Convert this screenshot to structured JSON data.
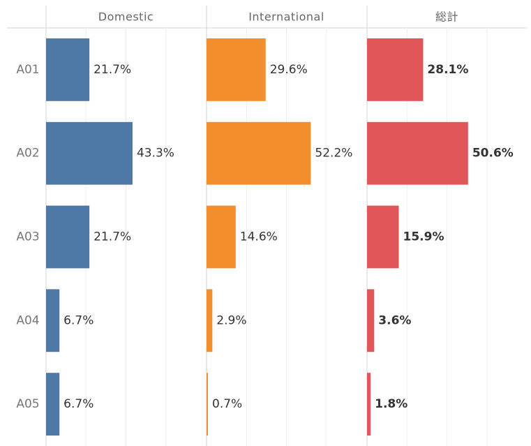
{
  "chart_data": {
    "type": "bar",
    "orientation": "horizontal",
    "categories": [
      "A01",
      "A02",
      "A03",
      "A04",
      "A05"
    ],
    "series": [
      {
        "name": "Domestic",
        "color": "#4e79a7",
        "values": [
          21.7,
          43.3,
          21.7,
          6.7,
          6.7
        ],
        "value_labels": [
          "21.7%",
          "43.3%",
          "21.7%",
          "6.7%",
          "6.7%"
        ]
      },
      {
        "name": "International",
        "color": "#f28e2b",
        "values": [
          29.6,
          52.2,
          14.6,
          2.9,
          0.7
        ],
        "value_labels": [
          "29.6%",
          "52.2%",
          "14.6%",
          "2.9%",
          "0.7%"
        ]
      },
      {
        "name": "総計",
        "color": "#e15759",
        "values": [
          28.1,
          50.6,
          15.9,
          3.6,
          1.8
        ],
        "value_labels": [
          "28.1%",
          "50.6%",
          "15.9%",
          "3.6%",
          "1.8%"
        ]
      }
    ],
    "xlim": [
      0,
      80
    ],
    "xticks": [
      0,
      20,
      40,
      60
    ],
    "grid": true
  }
}
